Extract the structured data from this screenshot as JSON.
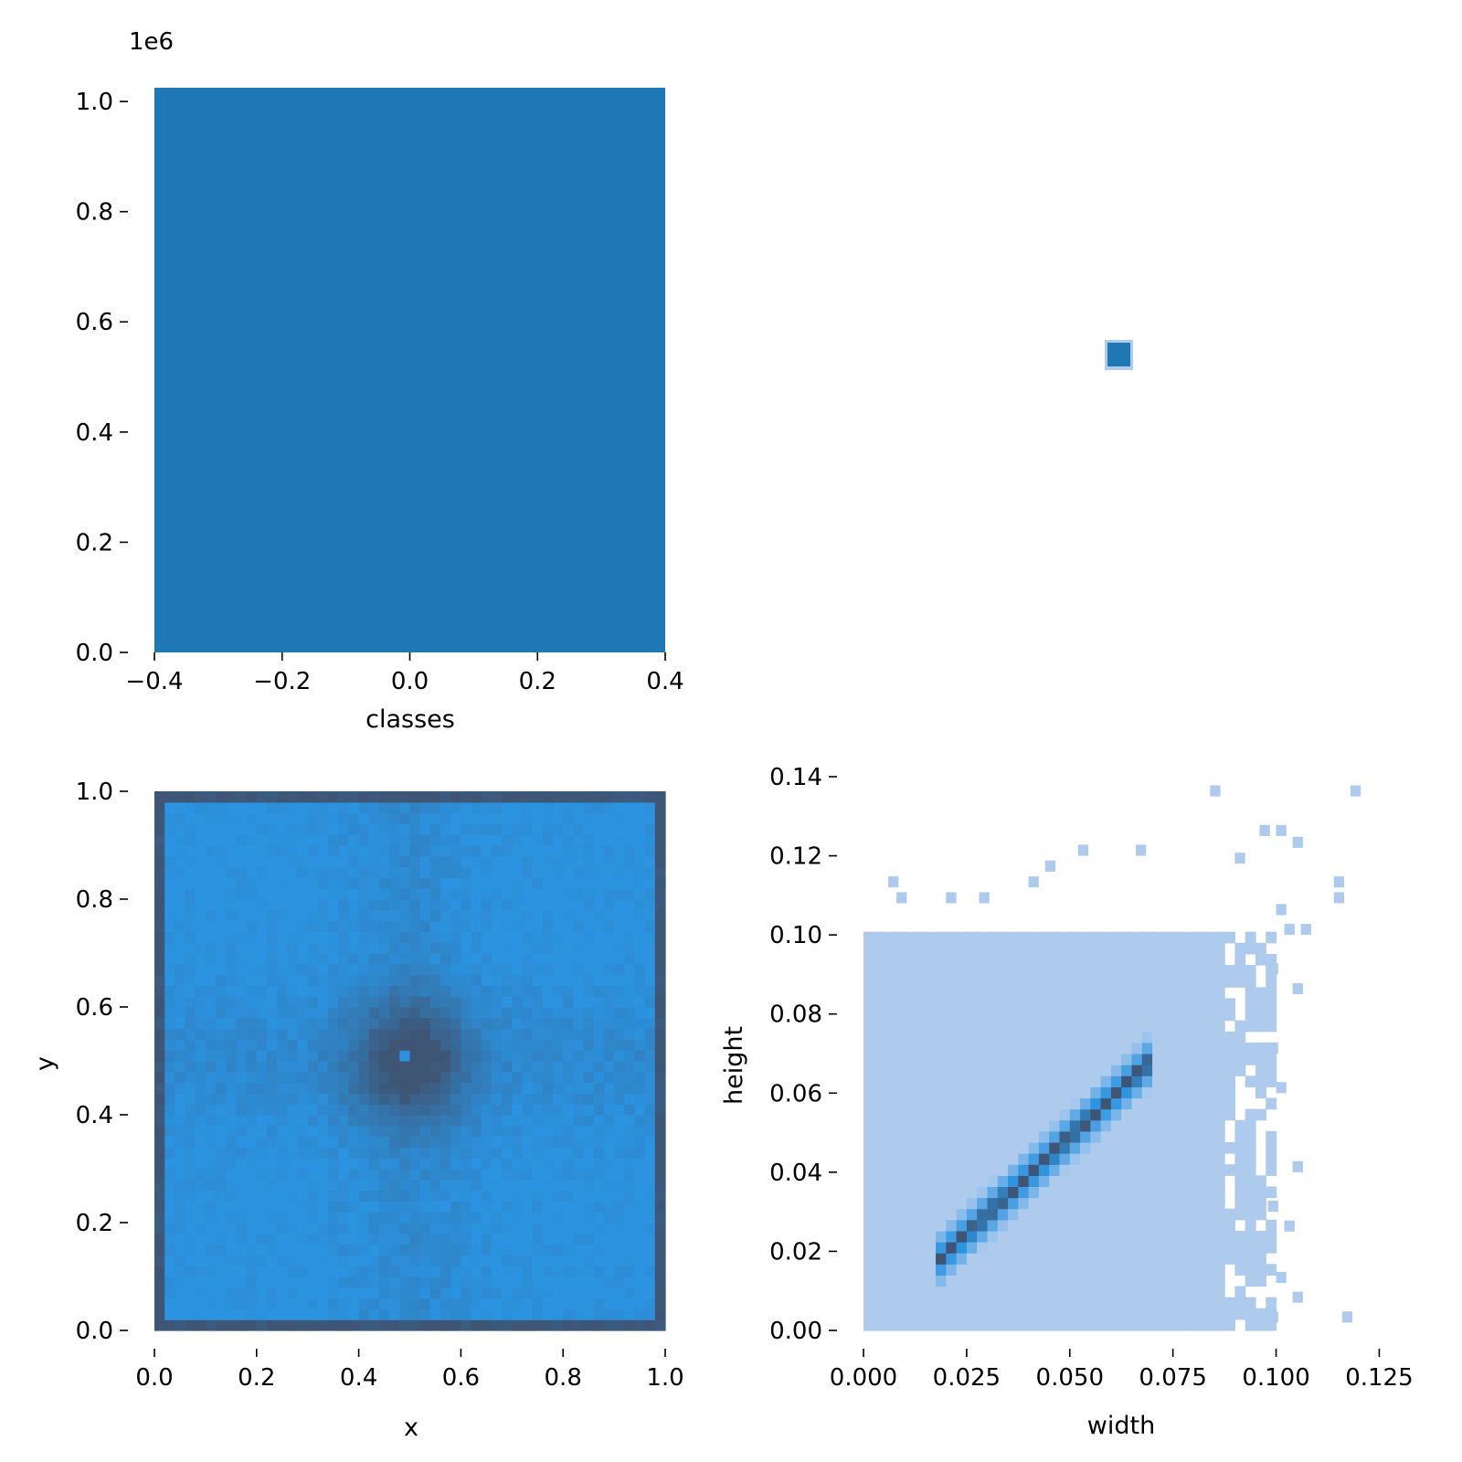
{
  "chart_data": [
    {
      "id": "classes-hist",
      "type": "bar",
      "xlabel": "classes",
      "ylabel": "",
      "y_offset_label": "1e6",
      "xlim": [
        -0.4,
        0.4
      ],
      "ylim": [
        0,
        1.025
      ],
      "xticks": [
        -0.4,
        -0.2,
        0.0,
        0.2,
        0.4
      ],
      "xtick_labels": [
        "−0.4",
        "−0.2",
        "0.0",
        "0.2",
        "0.4"
      ],
      "yticks": [
        0.0,
        0.2,
        0.4,
        0.6,
        0.8,
        1.0
      ],
      "ytick_labels": [
        "0.0",
        "0.2",
        "0.4",
        "0.6",
        "0.8",
        "1.0"
      ],
      "categories": [
        "0"
      ],
      "bins": [
        {
          "x0": -0.4,
          "x1": 0.4,
          "value": 1.025
        }
      ],
      "color": "#1f77b4"
    },
    {
      "id": "classes-corr-cell",
      "type": "heatmap",
      "note_values": [
        {
          "x": 0,
          "y": 0,
          "value": 1
        }
      ],
      "color": "#1f77b4"
    },
    {
      "id": "xy-hist2d",
      "type": "heatmap",
      "xlabel": "x",
      "ylabel": "y",
      "xlim": [
        0,
        1
      ],
      "ylim": [
        0,
        1
      ],
      "xticks": [
        0.0,
        0.2,
        0.4,
        0.6,
        0.8,
        1.0
      ],
      "xtick_labels": [
        "0.0",
        "0.2",
        "0.4",
        "0.6",
        "0.8",
        "1.0"
      ],
      "yticks": [
        0.0,
        0.2,
        0.4,
        0.6,
        0.8,
        1.0
      ],
      "ytick_labels": [
        "0.0",
        "0.2",
        "0.4",
        "0.6",
        "0.8",
        "1.0"
      ],
      "bins": 50,
      "center": [
        0.5,
        0.5
      ],
      "light_color": "#2b93e0",
      "dark_color": "#3e5575"
    },
    {
      "id": "wh-hist2d",
      "type": "heatmap",
      "xlabel": "width",
      "ylabel": "height",
      "xlim": [
        0,
        0.13
      ],
      "ylim": [
        0,
        0.14
      ],
      "xticks": [
        0.0,
        0.025,
        0.05,
        0.075,
        0.1,
        0.125
      ],
      "xtick_labels": [
        "0.000",
        "0.025",
        "0.050",
        "0.075",
        "0.100",
        "0.125"
      ],
      "yticks": [
        0.0,
        0.02,
        0.04,
        0.06,
        0.08,
        0.1,
        0.12,
        0.14
      ],
      "ytick_labels": [
        "0.00",
        "0.02",
        "0.04",
        "0.06",
        "0.08",
        "0.10",
        "0.12",
        "0.14"
      ],
      "bin_size": [
        0.0025,
        0.0028
      ],
      "diagonal_peak": {
        "from": [
          0.02,
          0.02
        ],
        "to": [
          0.065,
          0.065
        ]
      },
      "background_color": "#aecbee",
      "mid_color": "#2b93e0",
      "peak_color": "#3e5575"
    }
  ]
}
